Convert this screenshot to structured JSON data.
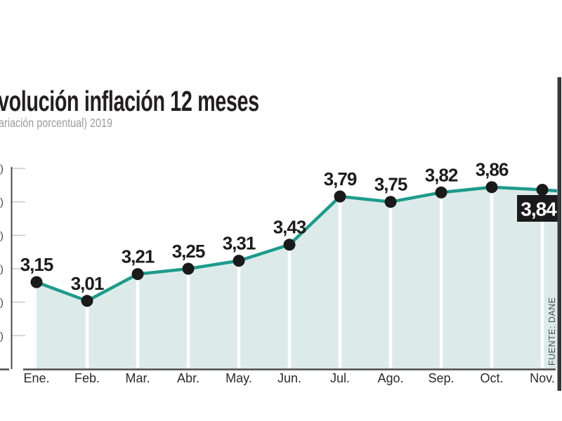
{
  "header": {
    "title": "volución inflación 12 meses",
    "subtitle": "ariación porcentual) 2019"
  },
  "source": {
    "label": "FUENTE: DANE"
  },
  "chart_data": {
    "type": "line",
    "area_fill": true,
    "title": "volución inflación 12 meses",
    "subtitle": "ariación porcentual) 2019",
    "categories": [
      "Ene.",
      "Feb.",
      "Mar.",
      "Abr.",
      "May.",
      "Jun.",
      "Jul.",
      "Ago.",
      "Sep.",
      "Oct.",
      "Nov."
    ],
    "values": [
      3.15,
      3.01,
      3.21,
      3.25,
      3.31,
      3.43,
      3.79,
      3.75,
      3.82,
      3.86,
      3.84
    ],
    "value_labels": [
      "3,15",
      "3,01",
      "3,21",
      "3,25",
      "3,31",
      "3,43",
      "3,79",
      "3,75",
      "3,82",
      "3,86"
    ],
    "highlight": {
      "index": 10,
      "label": "3,84"
    },
    "xlabel": "",
    "ylabel": "",
    "ylim": [
      2.5,
      4.0
    ],
    "ytick_step": 0.25,
    "ytick_label_fragments": [
      ")",
      ")",
      ")",
      ")",
      ")",
      ")"
    ],
    "grid": "vertical-white-separators",
    "legend": "none",
    "source": "FUENTE: DANE",
    "colors": {
      "line": "#1d9b8d",
      "area_fill": "#dcebe9",
      "dot": "#1a1a1a",
      "value_label": "#1c1c1c",
      "month_label": "#2b2b2b",
      "axis": "#4c4c4c",
      "tick": "#c9c9c9",
      "tick_fragment": "#444444",
      "badge_bg": "#1a1a1a",
      "badge_text": "#ffffff",
      "source_text": "#4d4d4d",
      "edge_strip": "#383838",
      "gridline": "#ffffff"
    }
  }
}
